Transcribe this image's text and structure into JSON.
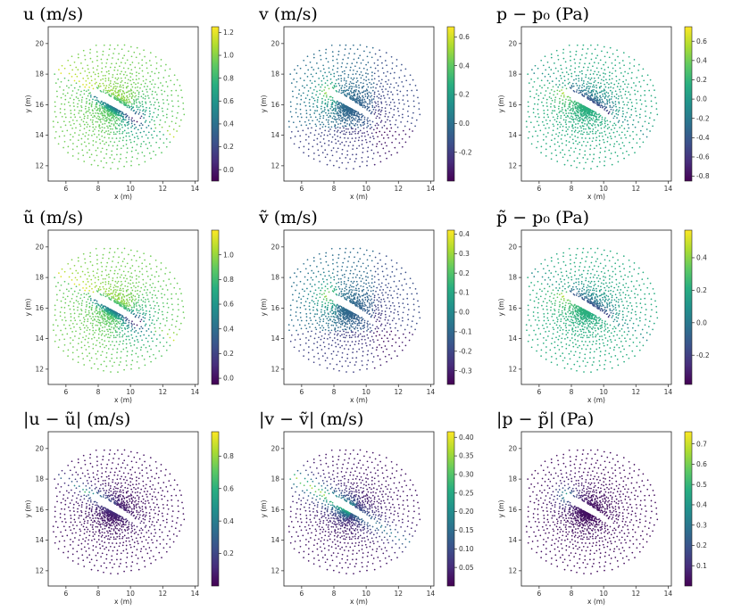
{
  "figure": {
    "rows": 3,
    "cols": 3
  },
  "chart_data": [
    {
      "type": "scatter",
      "title": "u  (m/s)",
      "xlabel": "x (m)",
      "ylabel": "y (m)",
      "xlim": [
        4.9,
        14.2
      ],
      "ylim": [
        11.0,
        21.1
      ],
      "xticks": [
        "6",
        "8",
        "10",
        "12",
        "14"
      ],
      "yticks": [
        "12",
        "14",
        "16",
        "18",
        "20"
      ],
      "colorbar": {
        "min": -0.1,
        "max": 1.25,
        "ticks": [
          "0.0",
          "0.2",
          "0.4",
          "0.6",
          "0.8",
          "1.0",
          "1.2"
        ]
      }
    },
    {
      "type": "scatter",
      "title": "v  (m/s)",
      "xlabel": "x (m)",
      "ylabel": "y (m)",
      "xlim": [
        4.9,
        14.2
      ],
      "ylim": [
        11.0,
        21.1
      ],
      "xticks": [
        "6",
        "8",
        "10",
        "12",
        "14"
      ],
      "yticks": [
        "12",
        "14",
        "16",
        "18",
        "20"
      ],
      "colorbar": {
        "min": -0.4,
        "max": 0.67,
        "ticks": [
          "-0.2",
          "0.0",
          "0.2",
          "0.4",
          "0.6"
        ]
      }
    },
    {
      "type": "scatter",
      "title": "p − p₀  (Pa)",
      "xlabel": "x (m)",
      "ylabel": "y (m)",
      "xlim": [
        4.9,
        14.2
      ],
      "ylim": [
        11.0,
        21.1
      ],
      "xticks": [
        "6",
        "8",
        "10",
        "12",
        "14"
      ],
      "yticks": [
        "12",
        "14",
        "16",
        "18",
        "20"
      ],
      "colorbar": {
        "min": -0.85,
        "max": 0.75,
        "ticks": [
          "-0.8",
          "-0.6",
          "-0.4",
          "-0.2",
          "0.0",
          "0.2",
          "0.4",
          "0.6"
        ]
      }
    },
    {
      "type": "scatter",
      "title": "ũ  (m/s)",
      "xlabel": "x (m)",
      "ylabel": "y (m)",
      "xlim": [
        4.9,
        14.2
      ],
      "ylim": [
        11.0,
        21.1
      ],
      "xticks": [
        "6",
        "8",
        "10",
        "12",
        "14"
      ],
      "yticks": [
        "12",
        "14",
        "16",
        "18",
        "20"
      ],
      "colorbar": {
        "min": -0.05,
        "max": 1.2,
        "ticks": [
          "0.0",
          "0.2",
          "0.4",
          "0.6",
          "0.8",
          "1.0"
        ]
      }
    },
    {
      "type": "scatter",
      "title": "ṽ  (m/s)",
      "xlabel": "x (m)",
      "ylabel": "y (m)",
      "xlim": [
        4.9,
        14.2
      ],
      "ylim": [
        11.0,
        21.1
      ],
      "xticks": [
        "6",
        "8",
        "10",
        "12",
        "14"
      ],
      "yticks": [
        "12",
        "14",
        "16",
        "18",
        "20"
      ],
      "colorbar": {
        "min": -0.37,
        "max": 0.42,
        "ticks": [
          "-0.3",
          "-0.2",
          "-0.1",
          "0.0",
          "0.1",
          "0.2",
          "0.3",
          "0.4"
        ]
      }
    },
    {
      "type": "scatter",
      "title": "p̃ − p₀  (Pa)",
      "xlabel": "x (m)",
      "ylabel": "y (m)",
      "xlim": [
        4.9,
        14.2
      ],
      "ylim": [
        11.0,
        21.1
      ],
      "xticks": [
        "6",
        "8",
        "10",
        "12",
        "14"
      ],
      "yticks": [
        "12",
        "14",
        "16",
        "18",
        "20"
      ],
      "colorbar": {
        "min": -0.38,
        "max": 0.57,
        "ticks": [
          "-0.2",
          "0.0",
          "0.2",
          "0.4"
        ]
      }
    },
    {
      "type": "scatter",
      "title": "|u − ũ|  (m/s)",
      "xlabel": "x (m)",
      "ylabel": "y (m)",
      "xlim": [
        4.9,
        14.2
      ],
      "ylim": [
        11.0,
        21.1
      ],
      "xticks": [
        "6",
        "8",
        "10",
        "12",
        "14"
      ],
      "yticks": [
        "12",
        "14",
        "16",
        "18",
        "20"
      ],
      "colorbar": {
        "min": 0.0,
        "max": 0.95,
        "ticks": [
          "0.2",
          "0.4",
          "0.6",
          "0.8"
        ]
      }
    },
    {
      "type": "scatter",
      "title": "|v − ṽ|  (m/s)",
      "xlabel": "x (m)",
      "ylabel": "y (m)",
      "xlim": [
        4.9,
        14.2
      ],
      "ylim": [
        11.0,
        21.1
      ],
      "xticks": [
        "6",
        "8",
        "10",
        "12",
        "14"
      ],
      "yticks": [
        "12",
        "14",
        "16",
        "18",
        "20"
      ],
      "colorbar": {
        "min": 0.0,
        "max": 0.415,
        "ticks": [
          "0.05",
          "0.10",
          "0.15",
          "0.20",
          "0.25",
          "0.30",
          "0.35",
          "0.40"
        ]
      }
    },
    {
      "type": "scatter",
      "title": "|p − p̃|  (Pa)",
      "xlabel": "x (m)",
      "ylabel": "y (m)",
      "xlim": [
        4.9,
        14.2
      ],
      "ylim": [
        11.0,
        21.1
      ],
      "xticks": [
        "6",
        "8",
        "10",
        "12",
        "14"
      ],
      "yticks": [
        "12",
        "14",
        "16",
        "18",
        "20"
      ],
      "colorbar": {
        "min": 0.0,
        "max": 0.76,
        "ticks": [
          "0.1",
          "0.2",
          "0.3",
          "0.4",
          "0.5",
          "0.6",
          "0.7"
        ]
      }
    }
  ]
}
